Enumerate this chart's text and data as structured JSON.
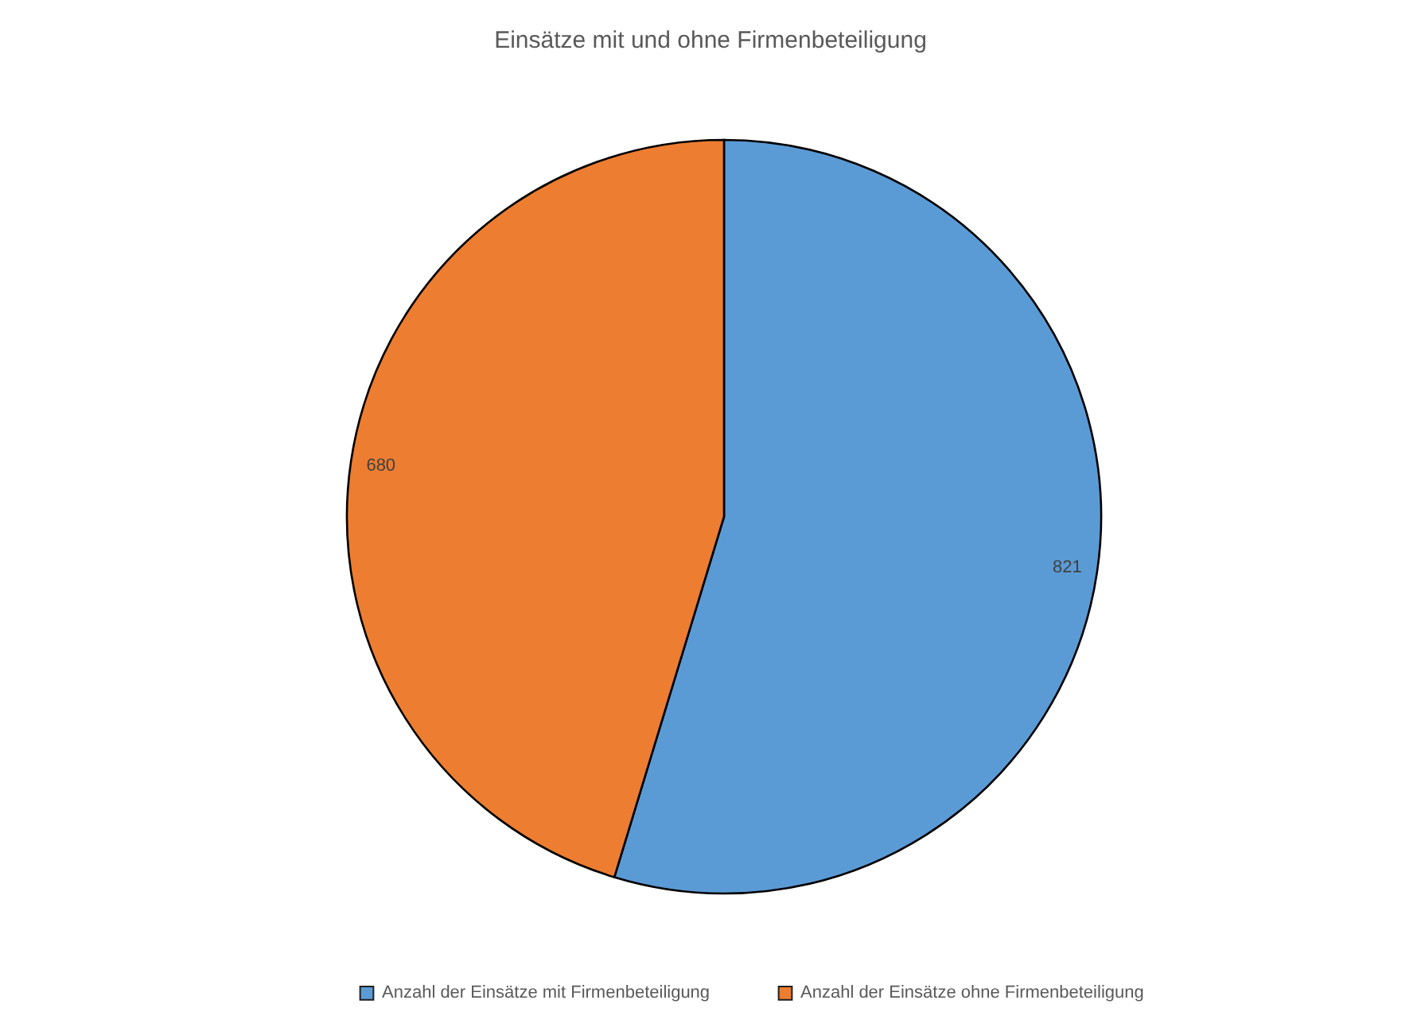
{
  "chart_data": {
    "type": "pie",
    "title": "Einsätze mit und ohne Firmenbeteiligung",
    "categories": [
      "Anzahl der Einsätze mit Firmenbeteiligung",
      "Anzahl der Einsätze ohne Firmenbeteiligung"
    ],
    "values": [
      821,
      680
    ],
    "colors": [
      "#5b9bd5",
      "#ed7d31"
    ],
    "data_labels": true,
    "legend": "bottom"
  }
}
